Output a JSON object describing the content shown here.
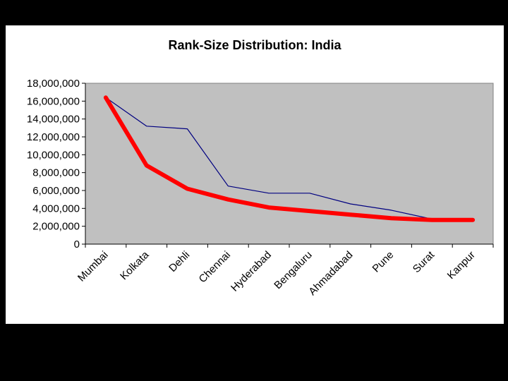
{
  "chart_data": {
    "type": "line",
    "title": "Rank-Size Distribution: India",
    "xlabel": "",
    "ylabel": "",
    "categories": [
      "Mumbai",
      "Kolkata",
      "Dehli",
      "Chennai",
      "Hyderabad",
      "Bengaluru",
      "Ahmadabad",
      "Pune",
      "Surat",
      "Kanpur"
    ],
    "ylim": [
      0,
      18000000
    ],
    "yticks": [
      0,
      2000000,
      4000000,
      6000000,
      8000000,
      10000000,
      12000000,
      14000000,
      16000000,
      18000000
    ],
    "ytick_labels": [
      "0",
      "2,000,000",
      "4,000,000",
      "6,000,000",
      "8,000,000",
      "10,000,000",
      "12,000,000",
      "14,000,000",
      "16,000,000",
      "18,000,000"
    ],
    "plot_background": "#c0c0c0",
    "legend": "none",
    "grid": false,
    "series": [
      {
        "color": "#000080",
        "values": [
          16400000,
          13200000,
          12900000,
          6500000,
          5700000,
          5700000,
          4500000,
          3800000,
          2800000,
          2700000
        ]
      },
      {
        "color": "#ff0000",
        "values": [
          16400000,
          8800000,
          6200000,
          5000000,
          4100000,
          3700000,
          3300000,
          2900000,
          2700000,
          2700000
        ]
      }
    ]
  }
}
